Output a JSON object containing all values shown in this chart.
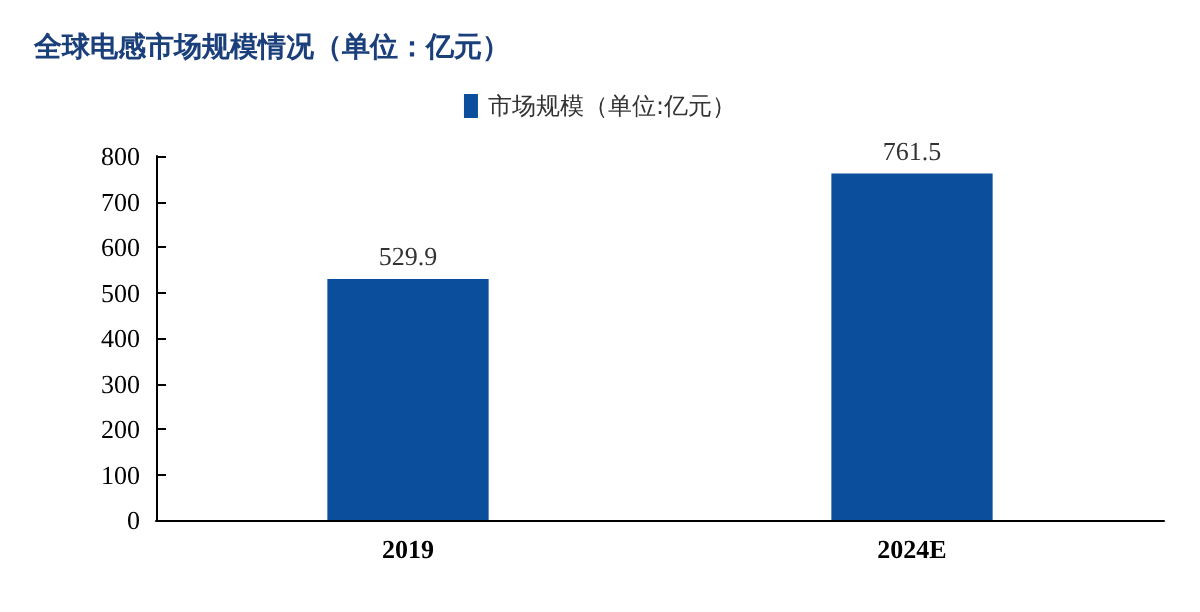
{
  "chart_data": {
    "type": "bar",
    "title": "全球电感市场规模情况（单位：亿元）",
    "categories": [
      "2019",
      "2024E"
    ],
    "series": [
      {
        "name": "市场规模（单位:亿元）",
        "color": "#0b4f9c",
        "values": [
          529.9,
          761.5
        ]
      }
    ],
    "ylim": [
      0,
      800
    ],
    "yticks": [
      0,
      100,
      200,
      300,
      400,
      500,
      600,
      700,
      800
    ],
    "data_labels": true,
    "legend": "top",
    "grid": false
  }
}
